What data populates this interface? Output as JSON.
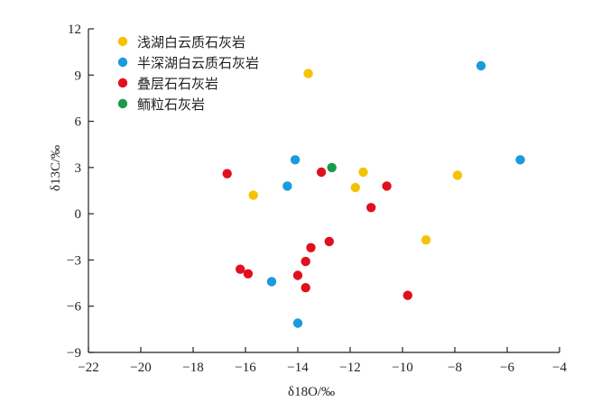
{
  "chart_data": {
    "type": "scatter",
    "xlabel": "δ18O/‰",
    "ylabel": "δ13C/‰",
    "xlim": [
      -22,
      -4
    ],
    "ylim": [
      -9,
      12
    ],
    "xticks": [
      -22,
      -20,
      -18,
      -16,
      -14,
      -12,
      -10,
      -8,
      -6,
      -4
    ],
    "yticks": [
      -9,
      -6,
      -3,
      0,
      3,
      6,
      9,
      12
    ],
    "xtick_labels": [
      "−22",
      "−20",
      "−18",
      "−16",
      "−14",
      "−12",
      "−10",
      "−8",
      "−6",
      "−4"
    ],
    "ytick_labels": [
      "−9",
      "−6",
      "−3",
      "0",
      "3",
      "6",
      "9",
      "12"
    ],
    "legend_position": "top-left",
    "grid": false,
    "series": [
      {
        "name": "浅湖白云质石灰岩",
        "color": "#f5c200",
        "points": [
          {
            "x": -13.6,
            "y": 9.1
          },
          {
            "x": -15.7,
            "y": 1.2
          },
          {
            "x": -11.5,
            "y": 2.7
          },
          {
            "x": -11.8,
            "y": 1.7
          },
          {
            "x": -7.9,
            "y": 2.5
          },
          {
            "x": -9.1,
            "y": -1.7
          }
        ]
      },
      {
        "name": "半深湖白云质石灰岩",
        "color": "#1a9bdc",
        "points": [
          {
            "x": -7.0,
            "y": 9.6
          },
          {
            "x": -5.5,
            "y": 3.5
          },
          {
            "x": -14.1,
            "y": 3.5
          },
          {
            "x": -14.4,
            "y": 1.8
          },
          {
            "x": -15.0,
            "y": -4.4
          },
          {
            "x": -14.0,
            "y": -7.1
          }
        ]
      },
      {
        "name": "叠层石石灰岩",
        "color": "#e0101e",
        "points": [
          {
            "x": -16.7,
            "y": 2.6
          },
          {
            "x": -13.1,
            "y": 2.7
          },
          {
            "x": -10.6,
            "y": 1.8
          },
          {
            "x": -11.2,
            "y": 0.4
          },
          {
            "x": -12.8,
            "y": -1.8
          },
          {
            "x": -13.5,
            "y": -2.2
          },
          {
            "x": -13.7,
            "y": -3.1
          },
          {
            "x": -16.2,
            "y": -3.6
          },
          {
            "x": -15.9,
            "y": -3.9
          },
          {
            "x": -14.0,
            "y": -4.0
          },
          {
            "x": -13.7,
            "y": -4.8
          },
          {
            "x": -9.8,
            "y": -5.3
          }
        ]
      },
      {
        "name": "鲕粒石灰岩",
        "color": "#1a9a4a",
        "points": [
          {
            "x": -12.7,
            "y": 3.0
          }
        ]
      }
    ]
  }
}
